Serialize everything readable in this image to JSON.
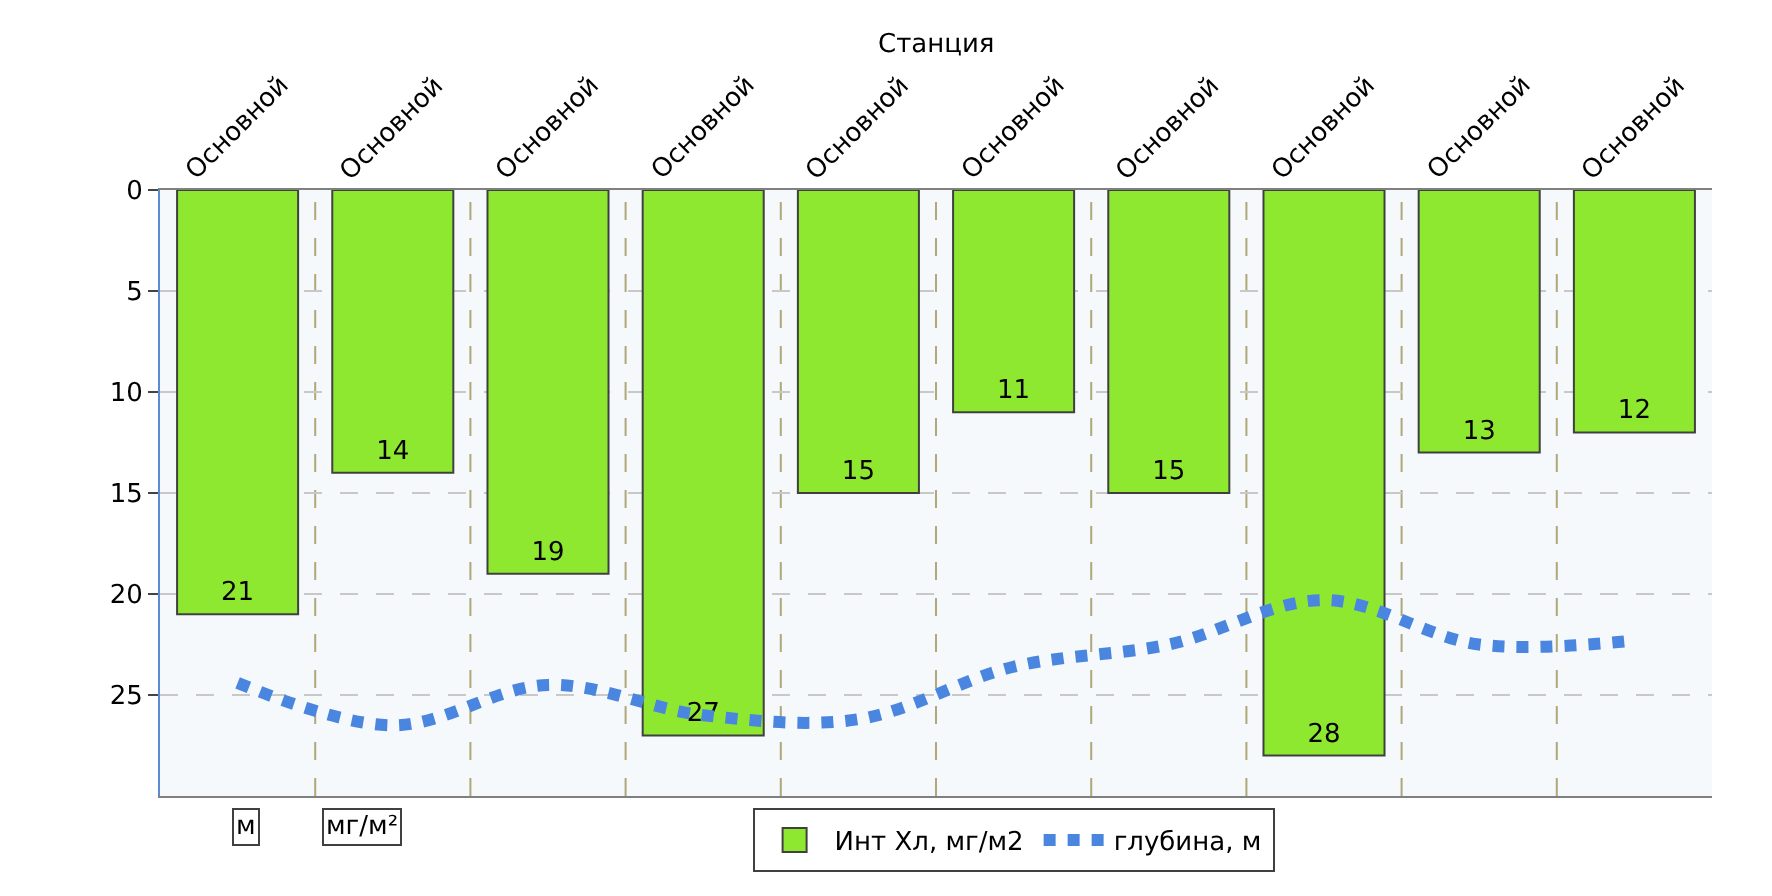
{
  "chart_data": {
    "type": "bar",
    "xlabel": "Станция",
    "categories": [
      "Основной",
      "Основной",
      "Основной",
      "Основной",
      "Основной",
      "Основной",
      "Основной",
      "Основной",
      "Основной",
      "Основной"
    ],
    "series": [
      {
        "name": "Инт Хл, мг/м2",
        "color": "#8fe830",
        "values": [
          21,
          14,
          19,
          27,
          15,
          11,
          15,
          28,
          13,
          12
        ],
        "value_labels": [
          "21",
          "14",
          "19",
          "27",
          "15",
          "11",
          "15",
          "28",
          "13",
          "12"
        ]
      },
      {
        "name": "глубина, м",
        "type": "line",
        "color": "#4a86e0",
        "line_style": "dotted",
        "values": [
          24.4,
          26.5,
          24.5,
          26.0,
          26.2,
          23.6,
          22.5,
          20.3,
          22.5,
          22.3
        ]
      }
    ],
    "ylim": [
      30,
      0
    ],
    "yticks": [
      0,
      5,
      10,
      15,
      20,
      25
    ],
    "grid": true,
    "legend": "bottom",
    "marker": "none",
    "annotations": [
      "м",
      "мг/м²"
    ]
  }
}
